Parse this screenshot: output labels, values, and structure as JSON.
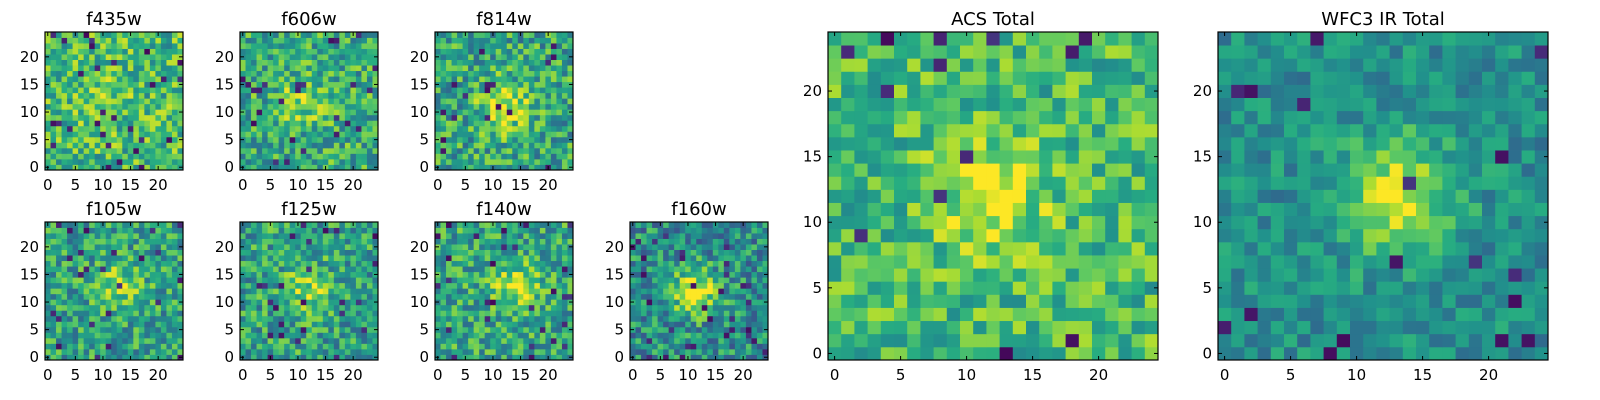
{
  "colormap": "viridis",
  "colors": {
    "frame": "#000000",
    "low": "#440154",
    "mid": "#21918c",
    "high": "#fde725"
  },
  "chart_data": [
    {
      "type": "heatmap",
      "title": "f435w",
      "grid": 25,
      "xticks": [
        0,
        5,
        10,
        15,
        20
      ],
      "yticks": [
        0,
        5,
        10,
        15,
        20
      ],
      "xlim": [
        0,
        24
      ],
      "ylim": [
        0,
        24
      ],
      "seed": 11,
      "level": 0.68,
      "noise": 0.5,
      "blob": 0.1,
      "cx": 10,
      "cy": 12,
      "dark": 0.04
    },
    {
      "type": "heatmap",
      "title": "f606w",
      "grid": 25,
      "xticks": [
        0,
        5,
        10,
        15,
        20
      ],
      "yticks": [
        0,
        5,
        10,
        15,
        20
      ],
      "xlim": [
        0,
        24
      ],
      "ylim": [
        0,
        24
      ],
      "seed": 23,
      "level": 0.62,
      "noise": 0.5,
      "blob": 0.22,
      "cx": 11,
      "cy": 12,
      "dark": 0.03
    },
    {
      "type": "heatmap",
      "title": "f814w",
      "grid": 25,
      "xticks": [
        0,
        5,
        10,
        15,
        20
      ],
      "yticks": [
        0,
        5,
        10,
        15,
        20
      ],
      "xlim": [
        0,
        24
      ],
      "ylim": [
        0,
        24
      ],
      "seed": 37,
      "level": 0.6,
      "noise": 0.52,
      "blob": 0.35,
      "cx": 12,
      "cy": 11,
      "dark": 0.03
    },
    {
      "type": "heatmap",
      "title": "f105w",
      "grid": 25,
      "xticks": [
        0,
        5,
        10,
        15,
        20
      ],
      "yticks": [
        0,
        5,
        10,
        15,
        20
      ],
      "xlim": [
        0,
        24
      ],
      "ylim": [
        0,
        24
      ],
      "seed": 41,
      "level": 0.58,
      "noise": 0.48,
      "blob": 0.25,
      "cx": 13,
      "cy": 13,
      "dark": 0.05
    },
    {
      "type": "heatmap",
      "title": "f125w",
      "grid": 25,
      "xticks": [
        0,
        5,
        10,
        15,
        20
      ],
      "yticks": [
        0,
        5,
        10,
        15,
        20
      ],
      "xlim": [
        0,
        24
      ],
      "ylim": [
        0,
        24
      ],
      "seed": 53,
      "level": 0.58,
      "noise": 0.5,
      "blob": 0.28,
      "cx": 12,
      "cy": 12,
      "dark": 0.05
    },
    {
      "type": "heatmap",
      "title": "f140w",
      "grid": 25,
      "xticks": [
        0,
        5,
        10,
        15,
        20
      ],
      "yticks": [
        0,
        5,
        10,
        15,
        20
      ],
      "xlim": [
        0,
        24
      ],
      "ylim": [
        0,
        24
      ],
      "seed": 67,
      "level": 0.6,
      "noise": 0.48,
      "blob": 0.3,
      "cx": 14,
      "cy": 13,
      "dark": 0.04
    },
    {
      "type": "heatmap",
      "title": "f160w",
      "grid": 25,
      "xticks": [
        0,
        5,
        10,
        15,
        20
      ],
      "yticks": [
        0,
        5,
        10,
        15,
        20
      ],
      "xlim": [
        0,
        24
      ],
      "ylim": [
        0,
        24
      ],
      "seed": 79,
      "level": 0.5,
      "noise": 0.5,
      "blob": 0.45,
      "cx": 11,
      "cy": 12,
      "dark": 0.06
    },
    {
      "type": "heatmap",
      "title": "ACS Total",
      "grid": 25,
      "xticks": [
        0,
        5,
        10,
        15,
        20
      ],
      "yticks": [
        0,
        5,
        10,
        15,
        20
      ],
      "xlim": [
        0,
        24
      ],
      "ylim": [
        0,
        24
      ],
      "seed": 97,
      "level": 0.68,
      "noise": 0.42,
      "blob": 0.28,
      "cx": 12,
      "cy": 12,
      "dark": 0.03
    },
    {
      "type": "heatmap",
      "title": "WFC3 IR Total",
      "grid": 25,
      "xticks": [
        0,
        5,
        10,
        15,
        20
      ],
      "yticks": [
        0,
        5,
        10,
        15,
        20
      ],
      "xlim": [
        0,
        24
      ],
      "ylim": [
        0,
        24
      ],
      "seed": 113,
      "level": 0.5,
      "noise": 0.3,
      "blob": 0.45,
      "cx": 13,
      "cy": 12,
      "dark": 0.03
    }
  ]
}
